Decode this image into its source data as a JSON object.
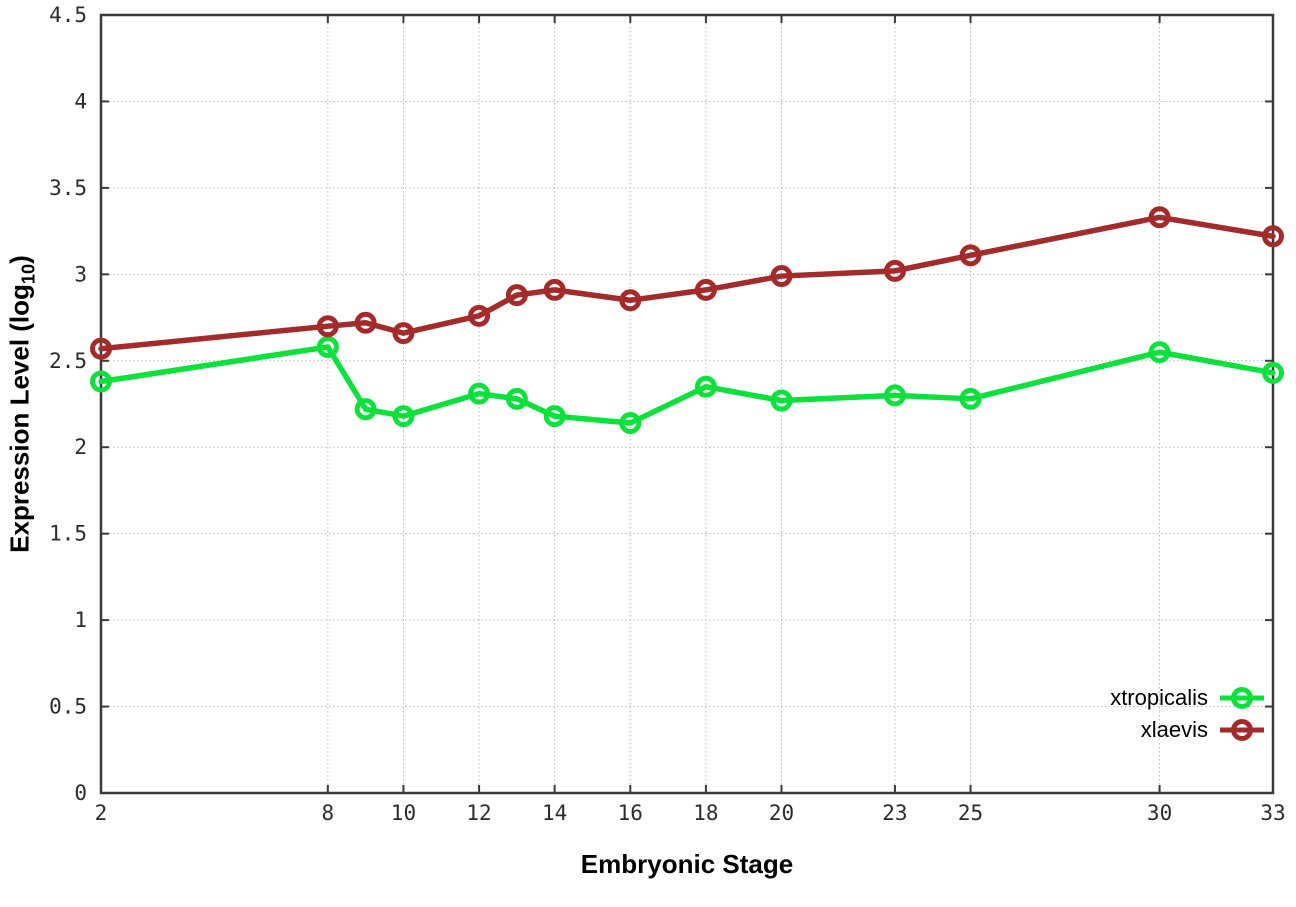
{
  "axes": {
    "xlabel": "Embryonic Stage",
    "ylabel_prefix": "Expression Level (log",
    "ylabel_sub": "10",
    "ylabel_suffix": ")"
  },
  "legend": {
    "position": "bottom-right",
    "entries": [
      {
        "label": "xtropicalis",
        "color": "#0ce03c"
      },
      {
        "label": "xlaevis",
        "color": "#a42b2b"
      }
    ]
  },
  "colors": {
    "background": "#ffffff",
    "grid": "#b8b8b8",
    "border": "#3a3a3a",
    "tick_label": "#2b2b2b",
    "xtropicalis": "#0ce03c",
    "xlaevis": "#a42b2b"
  },
  "chart_data": {
    "type": "line",
    "title": "",
    "xlabel": "Embryonic Stage",
    "ylabel": "Expression Level (log10)",
    "x": [
      2,
      8,
      9,
      10,
      12,
      13,
      14,
      16,
      18,
      20,
      23,
      25,
      30,
      33
    ],
    "series": [
      {
        "name": "xtropicalis",
        "color": "#0ce03c",
        "values": [
          2.38,
          2.58,
          2.22,
          2.18,
          2.31,
          2.28,
          2.18,
          2.14,
          2.35,
          2.27,
          2.3,
          2.28,
          2.55,
          2.43
        ]
      },
      {
        "name": "xlaevis",
        "color": "#a42b2b",
        "values": [
          2.57,
          2.7,
          2.72,
          2.66,
          2.76,
          2.88,
          2.91,
          2.85,
          2.91,
          2.99,
          3.02,
          3.11,
          3.33,
          3.22
        ]
      }
    ],
    "xlim": [
      2,
      33
    ],
    "ylim": [
      0,
      4.5
    ],
    "xticks": [
      2,
      8,
      10,
      12,
      14,
      16,
      18,
      20,
      23,
      25,
      30,
      33
    ],
    "xtick_labels": [
      "2",
      "8",
      "10",
      "12",
      "14",
      "16",
      "18",
      "20",
      "23",
      "25",
      "30",
      "33"
    ],
    "yticks": [
      0,
      0.5,
      1,
      1.5,
      2,
      2.5,
      3,
      3.5,
      4,
      4.5
    ],
    "ytick_labels": [
      "0",
      "0.5",
      "1",
      "1.5",
      "2",
      "2.5",
      "3",
      "3.5",
      "4",
      "4.5"
    ],
    "grid": true,
    "marker": "open-circle",
    "legend_position": "bottom-right"
  }
}
